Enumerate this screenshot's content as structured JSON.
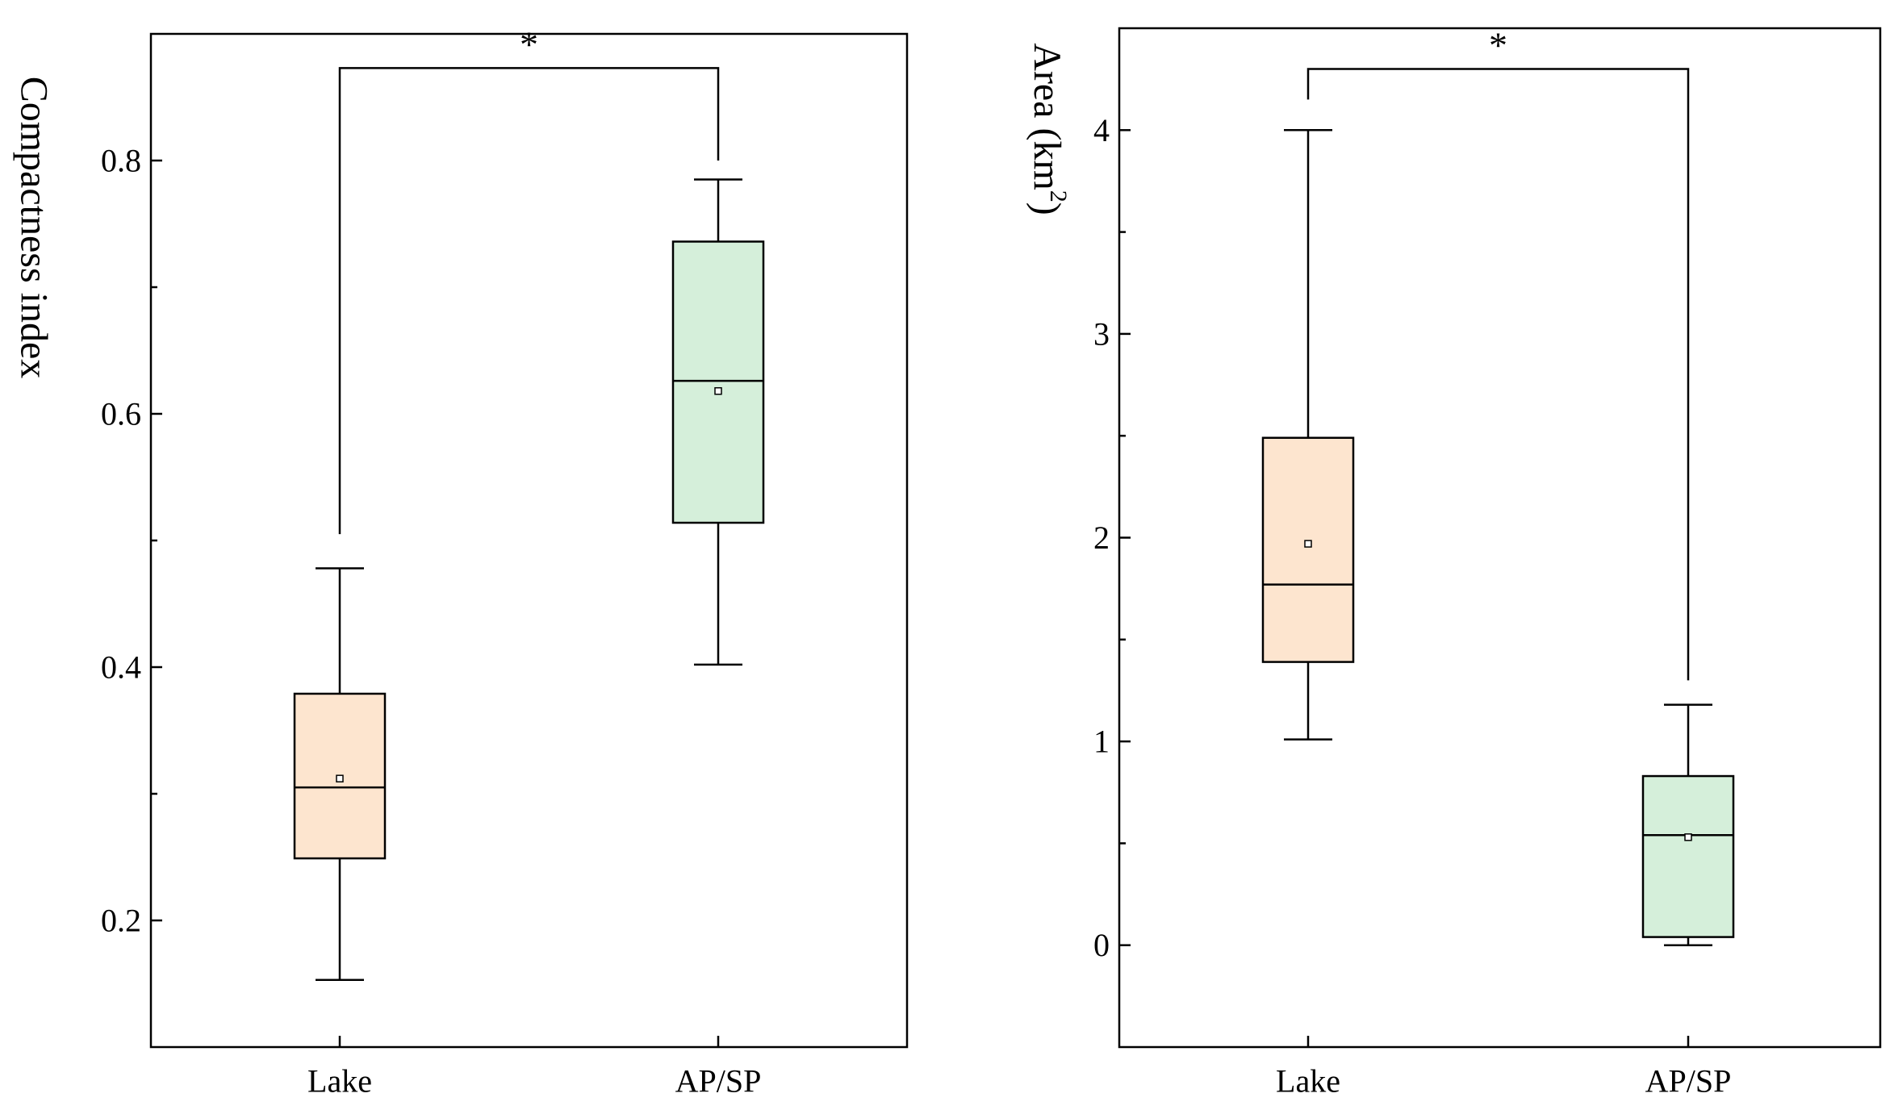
{
  "chart_data": [
    {
      "type": "box",
      "ylabel": "Compactness index",
      "ylim": [
        0.1,
        0.9
      ],
      "yticks": [
        0.2,
        0.4,
        0.6,
        0.8
      ],
      "yticks_minor": [
        0.3,
        0.5,
        0.7
      ],
      "categories": [
        "Lake",
        "AP/SP"
      ],
      "boxes": [
        {
          "category": "Lake",
          "whisker_low": 0.153,
          "q1": 0.249,
          "median": 0.305,
          "q3": 0.379,
          "whisker_high": 0.478,
          "mean": 0.312,
          "color": "#fde5cf"
        },
        {
          "category": "AP/SP",
          "whisker_low": 0.402,
          "q1": 0.514,
          "median": 0.626,
          "q3": 0.736,
          "whisker_high": 0.785,
          "mean": 0.618,
          "color": "#d5efda"
        }
      ],
      "significance": {
        "label": "*",
        "bar_level": 0.873,
        "left_drop_to": 0.505,
        "right_drop_to": 0.8
      }
    },
    {
      "type": "box",
      "ylabel_main": "Area (km",
      "ylabel_sup": "2",
      "ylabel_end": ")",
      "ylim": [
        -0.5,
        4.5
      ],
      "yticks": [
        0,
        1,
        2,
        3,
        4
      ],
      "yticks_minor": [
        0.5,
        1.5,
        2.5,
        3.5
      ],
      "categories": [
        "Lake",
        "AP/SP"
      ],
      "boxes": [
        {
          "category": "Lake",
          "whisker_low": 1.01,
          "q1": 1.39,
          "median": 1.77,
          "q3": 2.49,
          "whisker_high": 4.0,
          "mean": 1.97,
          "color": "#fde5cf"
        },
        {
          "category": "AP/SP",
          "whisker_low": 0.0,
          "q1": 0.04,
          "median": 0.54,
          "q3": 0.83,
          "whisker_high": 1.18,
          "mean": 0.53,
          "color": "#d5efda"
        }
      ],
      "significance": {
        "label": "*",
        "bar_level": 4.3,
        "left_drop_to": 4.15,
        "right_drop_to": 1.3
      }
    }
  ]
}
